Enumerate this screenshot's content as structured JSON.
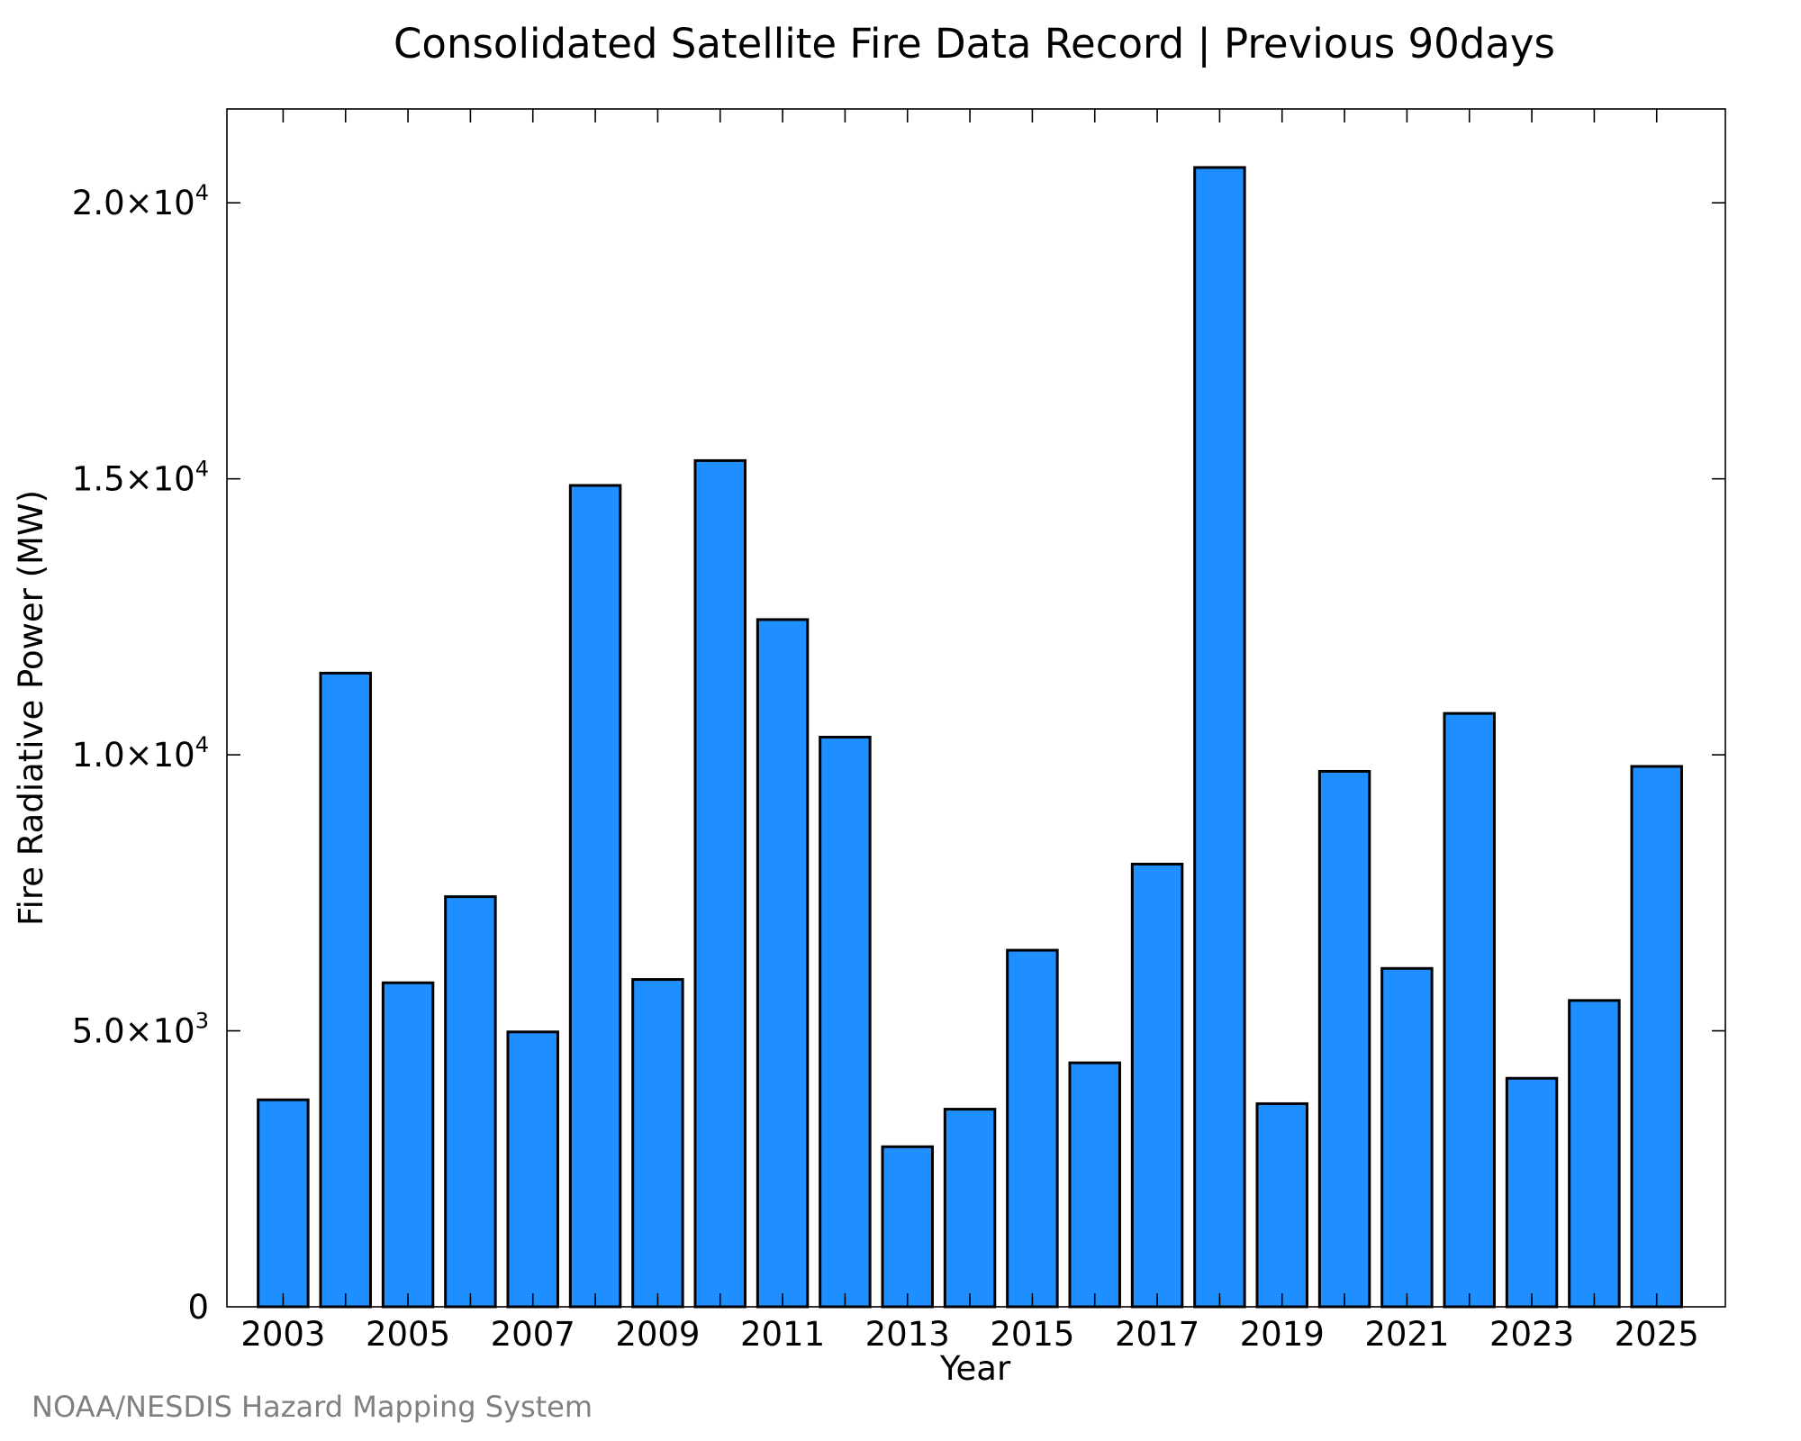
{
  "chart_data": {
    "type": "bar",
    "title": "Consolidated Satellite Fire Data Record | Previous 90days",
    "xlabel": "Year",
    "ylabel": "Fire Radiative Power (MW)",
    "credit": "NOAA/NESDIS Hazard Mapping System",
    "categories": [
      2003,
      2004,
      2005,
      2006,
      2007,
      2008,
      2009,
      2010,
      2011,
      2012,
      2013,
      2014,
      2015,
      2016,
      2017,
      2018,
      2019,
      2020,
      2021,
      2022,
      2023,
      2024,
      2025
    ],
    "values": [
      3750,
      11480,
      5870,
      7430,
      4980,
      14880,
      5930,
      15330,
      12450,
      10320,
      2900,
      3580,
      6460,
      4420,
      8020,
      20640,
      3680,
      9700,
      6130,
      10750,
      4140,
      5550,
      9790
    ],
    "x_tick_labels": [
      "2003",
      "2005",
      "2007",
      "2009",
      "2011",
      "2013",
      "2015",
      "2017",
      "2019",
      "2021",
      "2023",
      "2025"
    ],
    "y_ticks": [
      {
        "value": 0,
        "mantissa": "0",
        "exponent": ""
      },
      {
        "value": 5000,
        "mantissa": "5.0×10",
        "exponent": "3"
      },
      {
        "value": 10000,
        "mantissa": "1.0×10",
        "exponent": "4"
      },
      {
        "value": 15000,
        "mantissa": "1.5×10",
        "exponent": "4"
      },
      {
        "value": 20000,
        "mantissa": "2.0×10",
        "exponent": "4"
      }
    ],
    "xlim": [
      2002.1,
      2026.1
    ],
    "ylim": [
      0,
      21700
    ],
    "bar_color": "#1f8fff",
    "grid": false,
    "legend": "none"
  }
}
